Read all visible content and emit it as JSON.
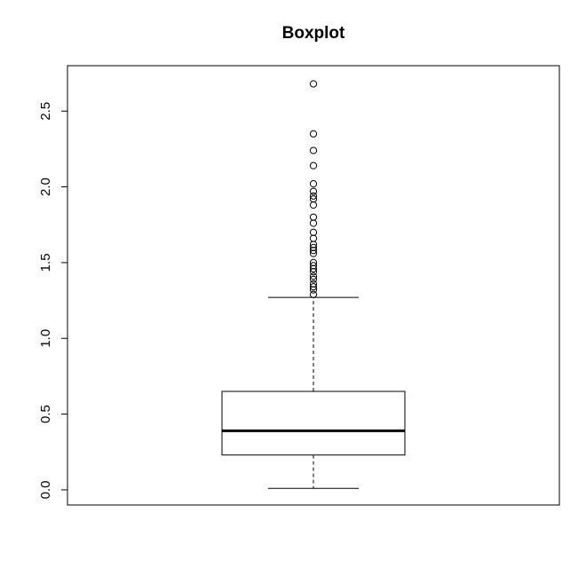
{
  "chart_data": {
    "type": "boxplot",
    "title": "Boxplot",
    "xlabel": "",
    "ylabel": "",
    "ylim": [
      -0.1,
      2.8
    ],
    "yticks": [
      0.0,
      0.5,
      1.0,
      1.5,
      2.0,
      2.5
    ],
    "ytick_labels": [
      "0.0",
      "0.5",
      "1.0",
      "1.5",
      "2.0",
      "2.5"
    ],
    "grid": false,
    "box": {
      "whisker_low": 0.01,
      "q1": 0.23,
      "median": 0.39,
      "q3": 0.65,
      "whisker_high": 1.27
    },
    "outliers": [
      1.29,
      1.32,
      1.34,
      1.36,
      1.39,
      1.41,
      1.44,
      1.46,
      1.48,
      1.5,
      1.56,
      1.58,
      1.6,
      1.62,
      1.66,
      1.7,
      1.76,
      1.8,
      1.88,
      1.92,
      1.94,
      1.97,
      2.02,
      2.14,
      2.24,
      2.35,
      2.68
    ]
  }
}
